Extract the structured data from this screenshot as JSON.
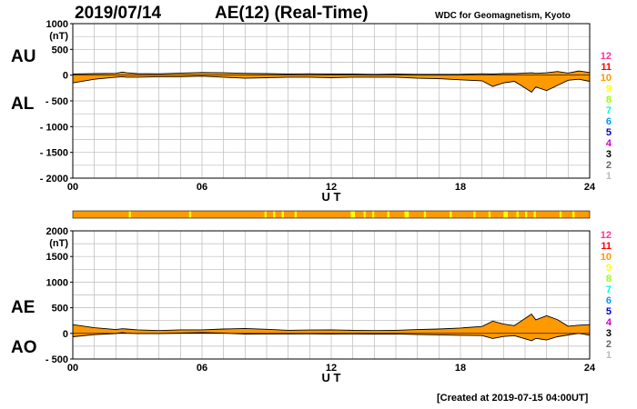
{
  "header": {
    "date": "2019/07/14",
    "title": "AE(12) (Real-Time)",
    "source": "WDC for Geomagnetism, Kyoto",
    "created": "[Created at 2019-07-15 04:00UT]"
  },
  "panel_labels": {
    "au": "AU",
    "al": "AL",
    "ae": "AE",
    "ao": "AO"
  },
  "legend": [
    {
      "label": "12",
      "color": "#ff3399"
    },
    {
      "label": "11",
      "color": "#ff0000"
    },
    {
      "label": "10",
      "color": "#ff9900"
    },
    {
      "label": "9",
      "color": "#ffff00"
    },
    {
      "label": "8",
      "color": "#99ff00"
    },
    {
      "label": "7",
      "color": "#00ffcc"
    },
    {
      "label": "6",
      "color": "#0099ff"
    },
    {
      "label": "5",
      "color": "#0000cc"
    },
    {
      "label": "4",
      "color": "#cc00cc"
    },
    {
      "label": "3",
      "color": "#000000"
    },
    {
      "label": "2",
      "color": "#666666"
    },
    {
      "label": "1",
      "color": "#bbbbbb"
    }
  ],
  "colors": {
    "fill": "#ff9900",
    "stations_12": "#ff9900",
    "stations_11": "#ffff00"
  },
  "chart_data": [
    {
      "type": "area",
      "panel": "AU/AL",
      "title": "AE(12) (Real-Time)",
      "ylabel": "(nT)",
      "xlabel": "U T",
      "xlim": [
        0,
        24
      ],
      "ylim": [
        -2000,
        1000
      ],
      "yticks": [
        1000,
        500,
        0,
        -500,
        -1000,
        -1500,
        -2000
      ],
      "ytick_labels": [
        "1000",
        "500",
        "0",
        "- 500",
        "- 1000",
        "- 1500",
        "- 2000"
      ],
      "xtick_labels": [
        "00",
        "06",
        "12",
        "18",
        "24"
      ],
      "grid": true,
      "series": [
        {
          "name": "AU",
          "x": [
            0,
            1,
            2,
            2.3,
            2.5,
            3,
            4,
            5,
            6,
            7,
            8,
            9,
            10,
            11,
            12,
            13,
            14,
            15,
            16,
            17,
            18,
            19,
            19.5,
            20,
            20.5,
            21,
            21.3,
            21.5,
            22,
            22.5,
            23,
            23.5,
            24
          ],
          "values": [
            20,
            30,
            35,
            60,
            45,
            30,
            25,
            40,
            50,
            45,
            35,
            30,
            20,
            25,
            20,
            20,
            15,
            20,
            15,
            15,
            15,
            25,
            20,
            30,
            30,
            40,
            45,
            35,
            45,
            70,
            40,
            80,
            50
          ]
        },
        {
          "name": "AL",
          "x": [
            0,
            1,
            2,
            2.3,
            2.5,
            3,
            4,
            5,
            6,
            7,
            8,
            9,
            10,
            11,
            12,
            13,
            14,
            15,
            16,
            17,
            18,
            19,
            19.5,
            20,
            20.5,
            21,
            21.3,
            21.5,
            22,
            22.5,
            23,
            23.5,
            24
          ],
          "values": [
            -150,
            -80,
            -40,
            -30,
            -40,
            -40,
            -30,
            -30,
            -20,
            -40,
            -60,
            -50,
            -40,
            -40,
            -50,
            -40,
            -40,
            -40,
            -60,
            -70,
            -90,
            -110,
            -220,
            -150,
            -120,
            -250,
            -330,
            -230,
            -300,
            -200,
            -100,
            -80,
            -120
          ]
        }
      ]
    },
    {
      "type": "area",
      "panel": "AE/AO",
      "ylabel": "(nT)",
      "xlabel": "U T",
      "xlim": [
        0,
        24
      ],
      "ylim": [
        -500,
        2000
      ],
      "yticks": [
        2000,
        1500,
        1000,
        500,
        0,
        -500
      ],
      "ytick_labels": [
        "2000",
        "1500",
        "1000",
        "500",
        "0",
        "- 500"
      ],
      "xtick_labels": [
        "00",
        "06",
        "12",
        "18",
        "24"
      ],
      "grid": true,
      "series": [
        {
          "name": "AE",
          "x": [
            0,
            1,
            2,
            2.3,
            2.5,
            3,
            4,
            5,
            6,
            7,
            8,
            9,
            10,
            11,
            12,
            13,
            14,
            15,
            16,
            17,
            18,
            19,
            19.5,
            20,
            20.5,
            21,
            21.3,
            21.5,
            22,
            22.5,
            23,
            23.5,
            24
          ],
          "values": [
            170,
            110,
            75,
            90,
            85,
            70,
            55,
            70,
            70,
            85,
            95,
            80,
            60,
            65,
            70,
            60,
            55,
            60,
            75,
            85,
            105,
            135,
            240,
            180,
            150,
            290,
            375,
            265,
            345,
            270,
            140,
            160,
            170
          ]
        },
        {
          "name": "AO",
          "x": [
            0,
            1,
            2,
            2.3,
            2.5,
            3,
            4,
            5,
            6,
            7,
            8,
            9,
            10,
            11,
            12,
            13,
            14,
            15,
            16,
            17,
            18,
            19,
            19.5,
            20,
            20.5,
            21,
            21.3,
            21.5,
            22,
            22.5,
            23,
            23.5,
            24
          ],
          "values": [
            -65,
            -25,
            -3,
            15,
            3,
            -5,
            -3,
            5,
            15,
            3,
            -13,
            -10,
            -10,
            -8,
            -15,
            -10,
            -13,
            -10,
            -23,
            -28,
            -38,
            -43,
            -100,
            -60,
            -45,
            -105,
            -143,
            -98,
            -128,
            -65,
            -30,
            0,
            -35
          ]
        }
      ]
    }
  ]
}
